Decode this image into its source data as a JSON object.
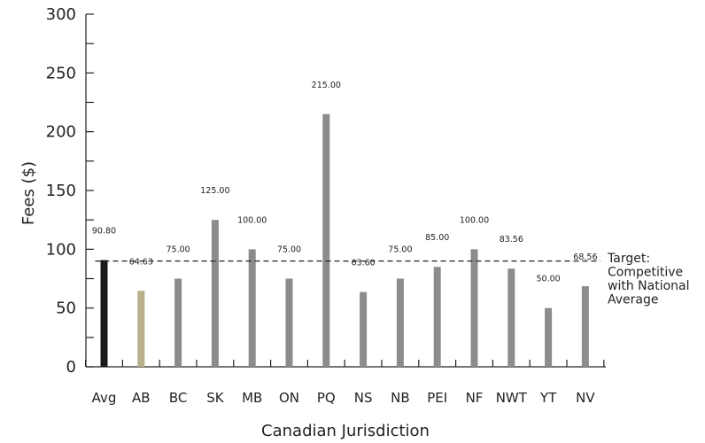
{
  "chart_data": {
    "type": "bar",
    "xlabel": "Canadian Jurisdiction",
    "ylabel": "Fees ($)",
    "ylim": [
      0,
      300
    ],
    "yticks": [
      "0",
      "50",
      "100",
      "150",
      "200",
      "250",
      "300"
    ],
    "categories": [
      "Avg",
      "AB",
      "BC",
      "SK",
      "MB",
      "ON",
      "PQ",
      "NS",
      "NB",
      "PEI",
      "NF",
      "NWT",
      "YT",
      "NV"
    ],
    "values": [
      90.8,
      64.63,
      75.0,
      125.0,
      100.0,
      75.0,
      215.0,
      63.6,
      75.0,
      85.0,
      100.0,
      83.56,
      50.0,
      68.56
    ],
    "data_labels": [
      "90.80",
      "64.63",
      "75.00",
      "125.00",
      "100.00",
      "75.00",
      "215.00",
      "63.60",
      "75.00",
      "85.00",
      "100.00",
      "83.56",
      "50.00",
      "68.56"
    ],
    "colors": [
      "#1a1a1a",
      "#b8b08a",
      "#8c8c8c",
      "#8c8c8c",
      "#8c8c8c",
      "#8c8c8c",
      "#8c8c8c",
      "#8c8c8c",
      "#8c8c8c",
      "#8c8c8c",
      "#8c8c8c",
      "#8c8c8c",
      "#8c8c8c",
      "#8c8c8c"
    ],
    "reference_line": {
      "value": 90,
      "style": "dashed",
      "label_lines": [
        "Target:",
        "Competitive",
        "with National",
        "Average"
      ]
    },
    "grid": false
  }
}
